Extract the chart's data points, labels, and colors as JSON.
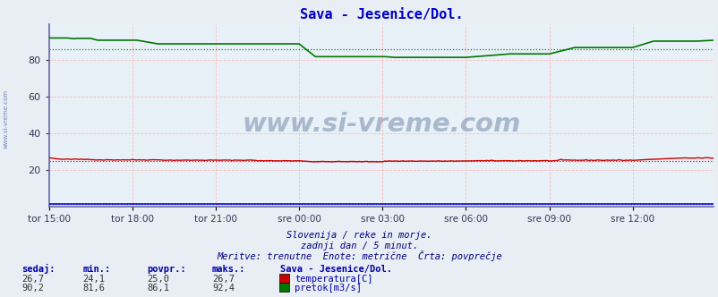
{
  "title": "Sava - Jesenice/Dol.",
  "title_color": "#0000cc",
  "bg_color": "#e8eef4",
  "plot_bg_color": "#e8f0f8",
  "xlim": [
    0,
    287
  ],
  "ylim": [
    0,
    100
  ],
  "yticks": [
    20,
    40,
    60,
    80
  ],
  "xtick_labels": [
    "tor 15:00",
    "tor 18:00",
    "tor 21:00",
    "sre 00:00",
    "sre 03:00",
    "sre 06:00",
    "sre 09:00",
    "sre 12:00"
  ],
  "xtick_positions": [
    0,
    36,
    72,
    108,
    144,
    180,
    216,
    252
  ],
  "temp_color": "#cc0000",
  "flow_color": "#007700",
  "level_color": "#0000bb",
  "temp_avg": 25.0,
  "flow_avg": 86.1,
  "level_avg": 1.5,
  "watermark": "www.si-vreme.com",
  "watermark_color": "#1a3a6b",
  "left_label": "www.si-vreme.com",
  "footer_line1": "Slovenija / reke in morje.",
  "footer_line2": "zadnji dan / 5 minut.",
  "footer_line3": "Meritve: trenutne  Enote: metrične  Črta: povprečje",
  "footer_color": "#000080",
  "legend_title": "Sava - Jesenice/Dol.",
  "legend_items": [
    {
      "label": "temperatura[C]",
      "color": "#cc0000"
    },
    {
      "label": "pretok[m3/s]",
      "color": "#007700"
    }
  ],
  "stats_headers": [
    "sedaj:",
    "min.:",
    "povpr.:",
    "maks.:"
  ],
  "stats_temp": [
    "26,7",
    "24,1",
    "25,0",
    "26,7"
  ],
  "stats_flow": [
    "90,2",
    "81,6",
    "86,1",
    "92,4"
  ],
  "grid_color_v": "#ffbbbb",
  "grid_color_h": "#ffbbbb",
  "border_color": "#4444aa",
  "spine_color": "#6666aa"
}
